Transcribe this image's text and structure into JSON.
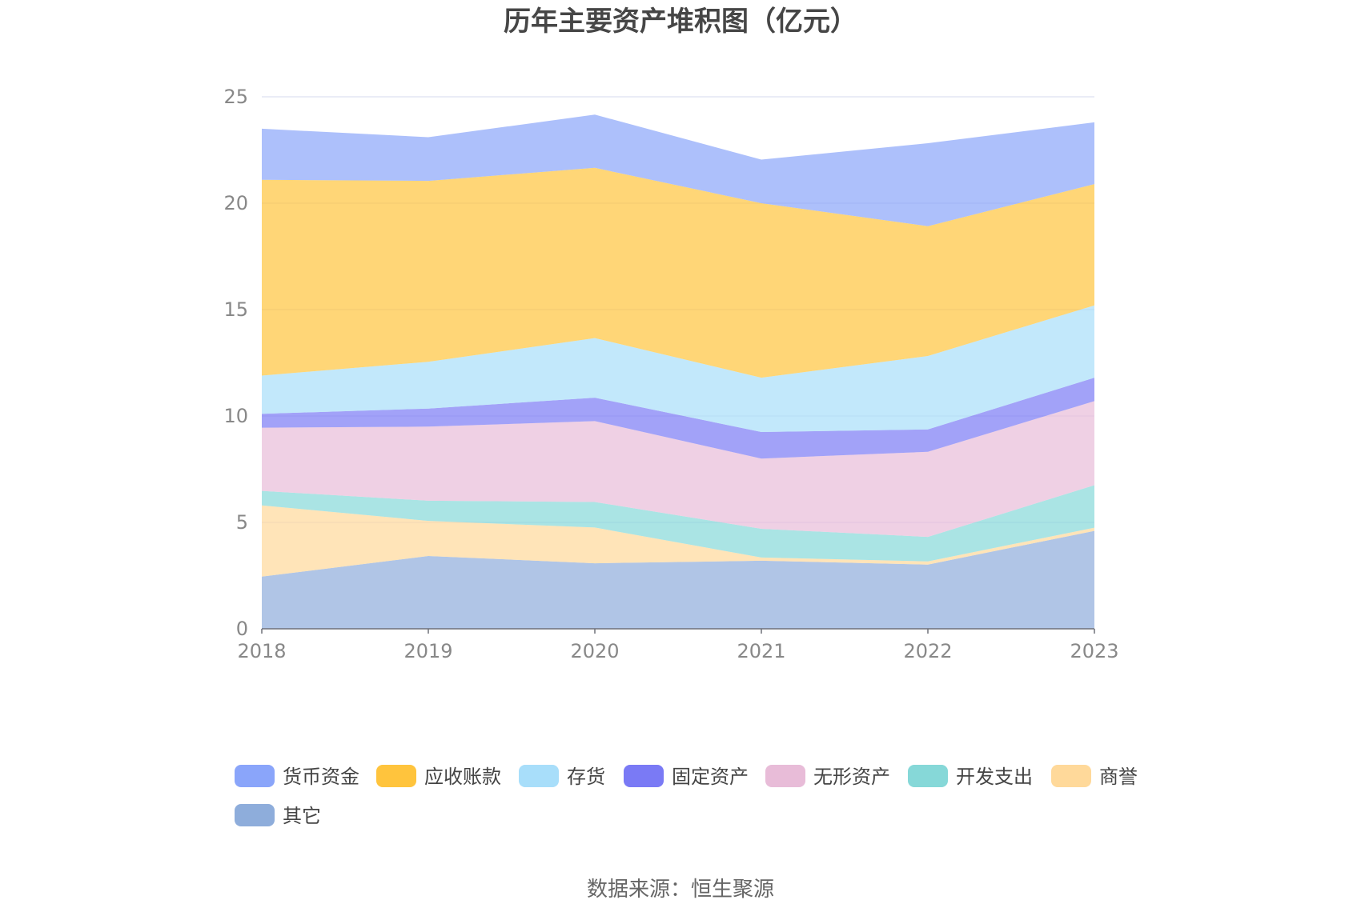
{
  "chart_data": {
    "type": "area",
    "stacked": true,
    "title": "历年主要资产堆积图（亿元）",
    "categories": [
      "2018",
      "2019",
      "2020",
      "2021",
      "2022",
      "2023"
    ],
    "ylim": [
      0,
      25
    ],
    "yticks": [
      0,
      5,
      10,
      15,
      20,
      25
    ],
    "grid": true,
    "series": [
      {
        "name": "其它",
        "color": "#8EADDB",
        "values": [
          2.45,
          3.42,
          3.08,
          3.2,
          3.02,
          4.6
        ]
      },
      {
        "name": "商誉",
        "color": "#FFD99A",
        "values": [
          3.35,
          1.65,
          1.68,
          0.15,
          0.15,
          0.15
        ]
      },
      {
        "name": "开发支出",
        "color": "#86D8D8",
        "values": [
          0.68,
          0.95,
          1.2,
          1.35,
          1.15,
          2.0
        ]
      },
      {
        "name": "无形资产",
        "color": "#E8BCD8",
        "values": [
          2.97,
          3.48,
          3.8,
          3.3,
          4.0,
          3.95
        ]
      },
      {
        "name": "固定资产",
        "color": "#7A7AF5",
        "values": [
          0.65,
          0.85,
          1.1,
          1.25,
          1.05,
          1.1
        ]
      },
      {
        "name": "存货",
        "color": "#A8DEFA",
        "values": [
          1.8,
          2.2,
          2.8,
          2.55,
          3.45,
          3.4
        ]
      },
      {
        "name": "应收账款",
        "color": "#FFC43D",
        "values": [
          9.2,
          8.5,
          8.0,
          8.2,
          6.1,
          5.7
        ]
      },
      {
        "name": "货币资金",
        "color": "#8AA5FA",
        "values": [
          2.4,
          2.05,
          2.5,
          2.05,
          3.9,
          2.9
        ]
      }
    ],
    "legend_order": [
      "货币资金",
      "应收账款",
      "存货",
      "固定资产",
      "无形资产",
      "开发支出",
      "商誉",
      "其它"
    ],
    "legend_position": "bottom",
    "source": "数据来源：恒生聚源"
  }
}
